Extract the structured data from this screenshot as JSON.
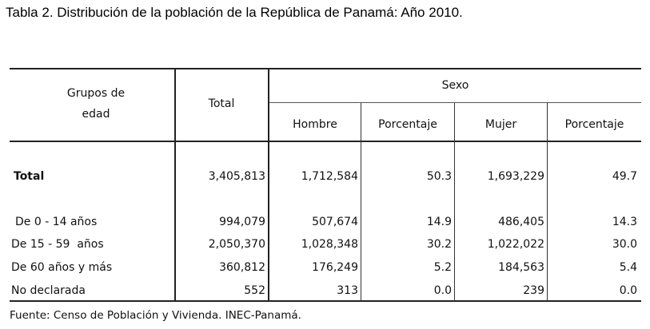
{
  "caption": "Tabla 2. Distribución de la población de la República de Panamá: Año 2010.",
  "header": {
    "group_line1": "Grupos de",
    "group_line2": "edad",
    "total": "Total",
    "sexo": "Sexo",
    "hombre": "Hombre",
    "porcentaje_h": "Porcentaje",
    "mujer": "Mujer",
    "porcentaje_m": "Porcentaje"
  },
  "rows": [
    {
      "group": "Total",
      "total": "3,405,813",
      "hombre": "1,712,584",
      "pct_h": "50.3",
      "mujer": "1,693,229",
      "pct_m": "49.7"
    },
    {
      "group": "De 0 - 14 años",
      "total": "994,079",
      "hombre": "507,674",
      "pct_h": "14.9",
      "mujer": "486,405",
      "pct_m": "14.3"
    },
    {
      "group": "De 15 - 59  años",
      "total": "2,050,370",
      "hombre": "1,028,348",
      "pct_h": "30.2",
      "mujer": "1,022,022",
      "pct_m": "30.0"
    },
    {
      "group": "De 60 años y más",
      "total": "360,812",
      "hombre": "176,249",
      "pct_h": "5.2",
      "mujer": "184,563",
      "pct_m": "5.4"
    },
    {
      "group": "No declarada",
      "total": "552",
      "hombre": "313",
      "pct_h": "0.0",
      "mujer": "239",
      "pct_m": "0.0"
    }
  ],
  "source": "Fuente: Censo de Población y Vivienda. INEC-Panamá."
}
